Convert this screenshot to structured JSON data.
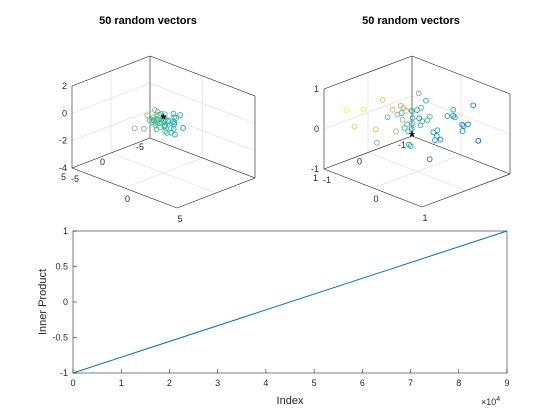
{
  "figure": {
    "background": "#ffffff",
    "axis_color": "#262626",
    "grid_color": "#dcdcdc",
    "line_color": "#0072bd",
    "origin_marker": "*"
  },
  "chart_data": [
    {
      "type": "scatter",
      "subtype": "3d",
      "title": "50 random vectors",
      "xlim": [
        -5,
        5
      ],
      "ylim": [
        -5,
        5
      ],
      "zlim": [
        -4,
        2
      ],
      "x_ticks": [
        "-5",
        "0",
        "5"
      ],
      "y_ticks": [
        "-5",
        "0",
        "5"
      ],
      "z_ticks": [
        "-4",
        "-2",
        "0",
        "2"
      ],
      "grid": true,
      "colormap": "parula",
      "origin_point": [
        0,
        0,
        0
      ]
    },
    {
      "type": "scatter",
      "subtype": "3d",
      "title": "50 random vectors",
      "xlim": [
        -1,
        1
      ],
      "ylim": [
        -1,
        1
      ],
      "zlim": [
        -1,
        1
      ],
      "x_ticks": [
        "-1",
        "0",
        "1"
      ],
      "y_ticks": [
        "-1",
        "0",
        "1"
      ],
      "z_ticks": [
        "-1",
        "0",
        "1"
      ],
      "grid": true,
      "colormap": "parula",
      "origin_point": [
        -1,
        -1,
        -1
      ]
    },
    {
      "type": "line",
      "title": "",
      "xlabel": "Index",
      "ylabel": "Inner Product",
      "xlim": [
        0,
        9
      ],
      "ylim": [
        -1,
        1
      ],
      "x_exponent_label": "×10",
      "x_exponent": "4",
      "x_ticks": [
        "0",
        "1",
        "2",
        "3",
        "4",
        "5",
        "6",
        "7",
        "8",
        "9"
      ],
      "y_ticks": [
        "-1",
        "-0.5",
        "0",
        "0.5",
        "1"
      ],
      "series": [
        {
          "x": [
            0,
            9
          ],
          "values": [
            -1,
            1
          ]
        }
      ]
    }
  ]
}
